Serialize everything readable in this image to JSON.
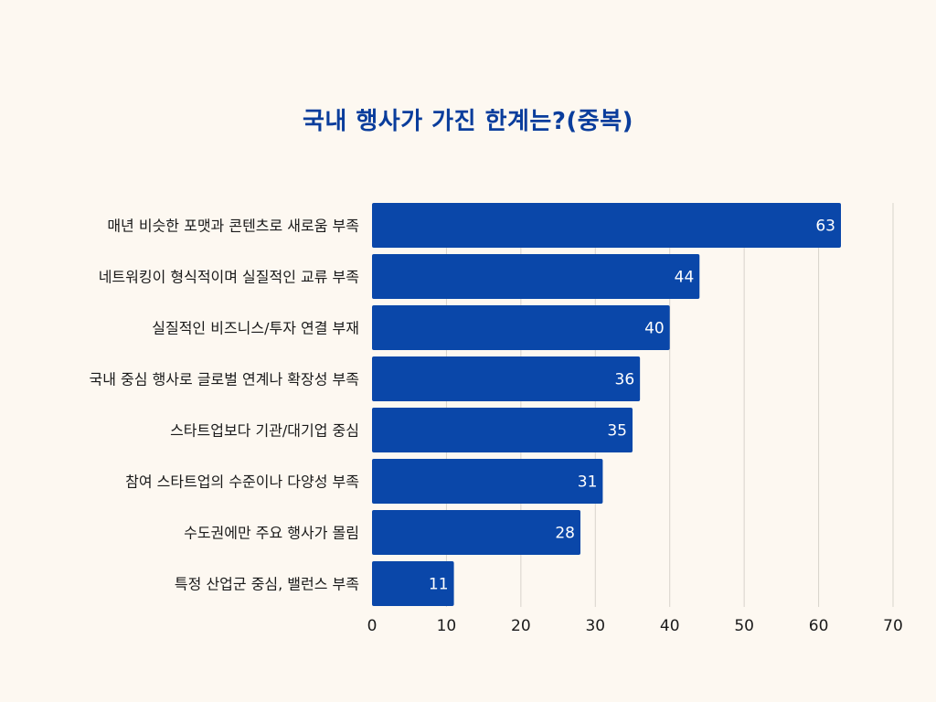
{
  "chart_data": {
    "type": "bar",
    "orientation": "horizontal",
    "title": "국내 행사가 가진 한계는?(중복)",
    "categories": [
      "매년 비슷한 포맷과 콘텐츠로 새로움 부족",
      "네트워킹이 형식적이며 실질적인 교류 부족",
      "실질적인 비즈니스/투자 연결 부재",
      "국내 중심 행사로 글로벌 연계나 확장성 부족",
      "스타트업보다 기관/대기업 중심",
      "참여 스타트업의 수준이나 다양성 부족",
      "수도권에만 주요 행사가 몰림",
      "특정 산업군 중심, 밸런스 부족"
    ],
    "values": [
      63,
      44,
      40,
      36,
      35,
      31,
      28,
      11
    ],
    "xlim": [
      0,
      70
    ],
    "xticks": [
      0,
      10,
      20,
      30,
      40,
      50,
      60,
      70
    ],
    "grid": true,
    "xlabel": "",
    "ylabel": "",
    "colors": {
      "bar": "#0a47a9",
      "title": "#0a3d9c",
      "background": "#fdf8f1",
      "grid": "#d8d3cc",
      "value_label": "#ffffff",
      "text": "#1a1a1a"
    }
  }
}
